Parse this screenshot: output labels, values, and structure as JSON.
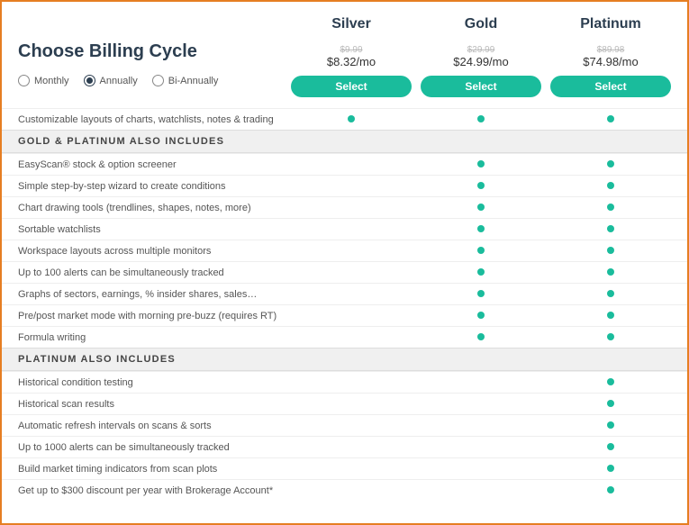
{
  "header": {
    "title": "Choose Billing Cycle",
    "billing_options": [
      {
        "label": "Monthly",
        "selected": false
      },
      {
        "label": "Annually",
        "selected": true
      },
      {
        "label": "Bi-Annually",
        "selected": false
      }
    ]
  },
  "plans": [
    {
      "name": "Silver",
      "old_price": "$9.99",
      "price": "$8.32/mo",
      "button": "Select"
    },
    {
      "name": "Gold",
      "old_price": "$29.99",
      "price": "$24.99/mo",
      "button": "Select"
    },
    {
      "name": "Platinum",
      "old_price": "$89.98",
      "price": "$74.98/mo",
      "button": "Select"
    }
  ],
  "sections": [
    {
      "header": null,
      "rows": [
        {
          "label": "Customizable layouts of charts, watchlists, notes & trading",
          "cols": [
            true,
            true,
            true
          ]
        }
      ]
    },
    {
      "header": "GOLD & PLATINUM ALSO INCLUDES",
      "rows": [
        {
          "label": "EasyScan® stock & option screener",
          "cols": [
            false,
            true,
            true
          ]
        },
        {
          "label": "Simple step-by-step wizard to create conditions",
          "cols": [
            false,
            true,
            true
          ]
        },
        {
          "label": "Chart drawing tools (trendlines, shapes, notes, more)",
          "cols": [
            false,
            true,
            true
          ]
        },
        {
          "label": "Sortable watchlists",
          "cols": [
            false,
            true,
            true
          ]
        },
        {
          "label": "Workspace layouts across multiple monitors",
          "cols": [
            false,
            true,
            true
          ]
        },
        {
          "label": "Up to 100 alerts can be simultaneously tracked",
          "cols": [
            false,
            true,
            true
          ]
        },
        {
          "label": "Graphs of sectors, earnings, % insider shares, sales…",
          "cols": [
            false,
            true,
            true
          ]
        },
        {
          "label": "Pre/post market mode with morning pre-buzz (requires RT)",
          "cols": [
            false,
            true,
            true
          ]
        },
        {
          "label": "Formula writing",
          "cols": [
            false,
            true,
            true
          ]
        }
      ]
    },
    {
      "header": "PLATINUM ALSO INCLUDES",
      "rows": [
        {
          "label": "Historical condition testing",
          "cols": [
            false,
            false,
            true
          ]
        },
        {
          "label": "Historical scan results",
          "cols": [
            false,
            false,
            true
          ]
        },
        {
          "label": "Automatic refresh intervals on scans & sorts",
          "cols": [
            false,
            false,
            true
          ]
        },
        {
          "label": "Up to 1000 alerts can be simultaneously tracked",
          "cols": [
            false,
            false,
            true
          ]
        },
        {
          "label": "Build market timing indicators from scan plots",
          "cols": [
            false,
            false,
            true
          ]
        },
        {
          "label": "Get up to $300 discount per year with Brokerage Account*",
          "cols": [
            false,
            false,
            true
          ]
        }
      ]
    }
  ],
  "colors": {
    "border": "#e67e22",
    "accent": "#1abc9c",
    "heading": "#2c3e50",
    "section_bg": "#f0f0f0",
    "row_border": "#eee"
  }
}
